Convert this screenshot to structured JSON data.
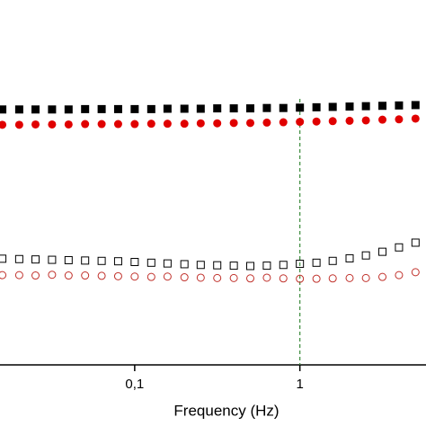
{
  "chart_data": {
    "type": "scatter",
    "x_label": "Frequency (Hz)",
    "x_log": true,
    "xlim": [
      0.0153,
      5.8
    ],
    "xticks": [
      {
        "value": 0.1,
        "label": "0,1"
      },
      1
    ],
    "ylim": [
      0,
      100
    ],
    "vline": {
      "x": 1,
      "color": "#3a8a3a"
    },
    "x": [
      0.0158,
      0.02,
      0.0251,
      0.0316,
      0.0398,
      0.0501,
      0.0631,
      0.0794,
      0.1,
      0.126,
      0.158,
      0.2,
      0.251,
      0.316,
      0.398,
      0.501,
      0.631,
      0.794,
      1,
      1.26,
      1.58,
      2,
      2.51,
      3.16,
      3.98,
      5.01
    ],
    "series": [
      {
        "color": "#000000",
        "marker": "square",
        "filled": true,
        "values": [
          70.0,
          70.0,
          70.0,
          70.0,
          70.0,
          70.1,
          70.1,
          70.1,
          70.1,
          70.1,
          70.2,
          70.2,
          70.2,
          70.3,
          70.3,
          70.3,
          70.4,
          70.4,
          70.5,
          70.6,
          70.7,
          70.8,
          70.9,
          71.0,
          71.1,
          71.2
        ]
      },
      {
        "color": "#e00000",
        "marker": "circle",
        "filled": true,
        "values": [
          65.8,
          65.8,
          65.9,
          65.9,
          65.9,
          66.0,
          66.0,
          66.0,
          66.0,
          66.1,
          66.1,
          66.1,
          66.2,
          66.2,
          66.3,
          66.3,
          66.4,
          66.5,
          66.6,
          66.7,
          66.8,
          66.9,
          67.0,
          67.2,
          67.3,
          67.5
        ]
      },
      {
        "color": "#000000",
        "marker": "square",
        "filled": false,
        "values": [
          29.1,
          29.0,
          28.9,
          28.8,
          28.7,
          28.6,
          28.5,
          28.4,
          28.2,
          28.0,
          27.8,
          27.6,
          27.4,
          27.3,
          27.2,
          27.1,
          27.2,
          27.4,
          27.7,
          28.0,
          28.5,
          29.2,
          30.0,
          31.0,
          32.2,
          33.5
        ]
      },
      {
        "color": "#c0302a",
        "marker": "circle",
        "filled": false,
        "values": [
          24.6,
          24.6,
          24.5,
          24.7,
          24.5,
          24.5,
          24.4,
          24.3,
          24.2,
          24.1,
          24.2,
          24.0,
          23.9,
          23.8,
          23.8,
          23.7,
          23.9,
          23.7,
          23.6,
          23.6,
          23.7,
          23.8,
          23.8,
          24.1,
          24.6,
          25.4
        ]
      }
    ]
  }
}
